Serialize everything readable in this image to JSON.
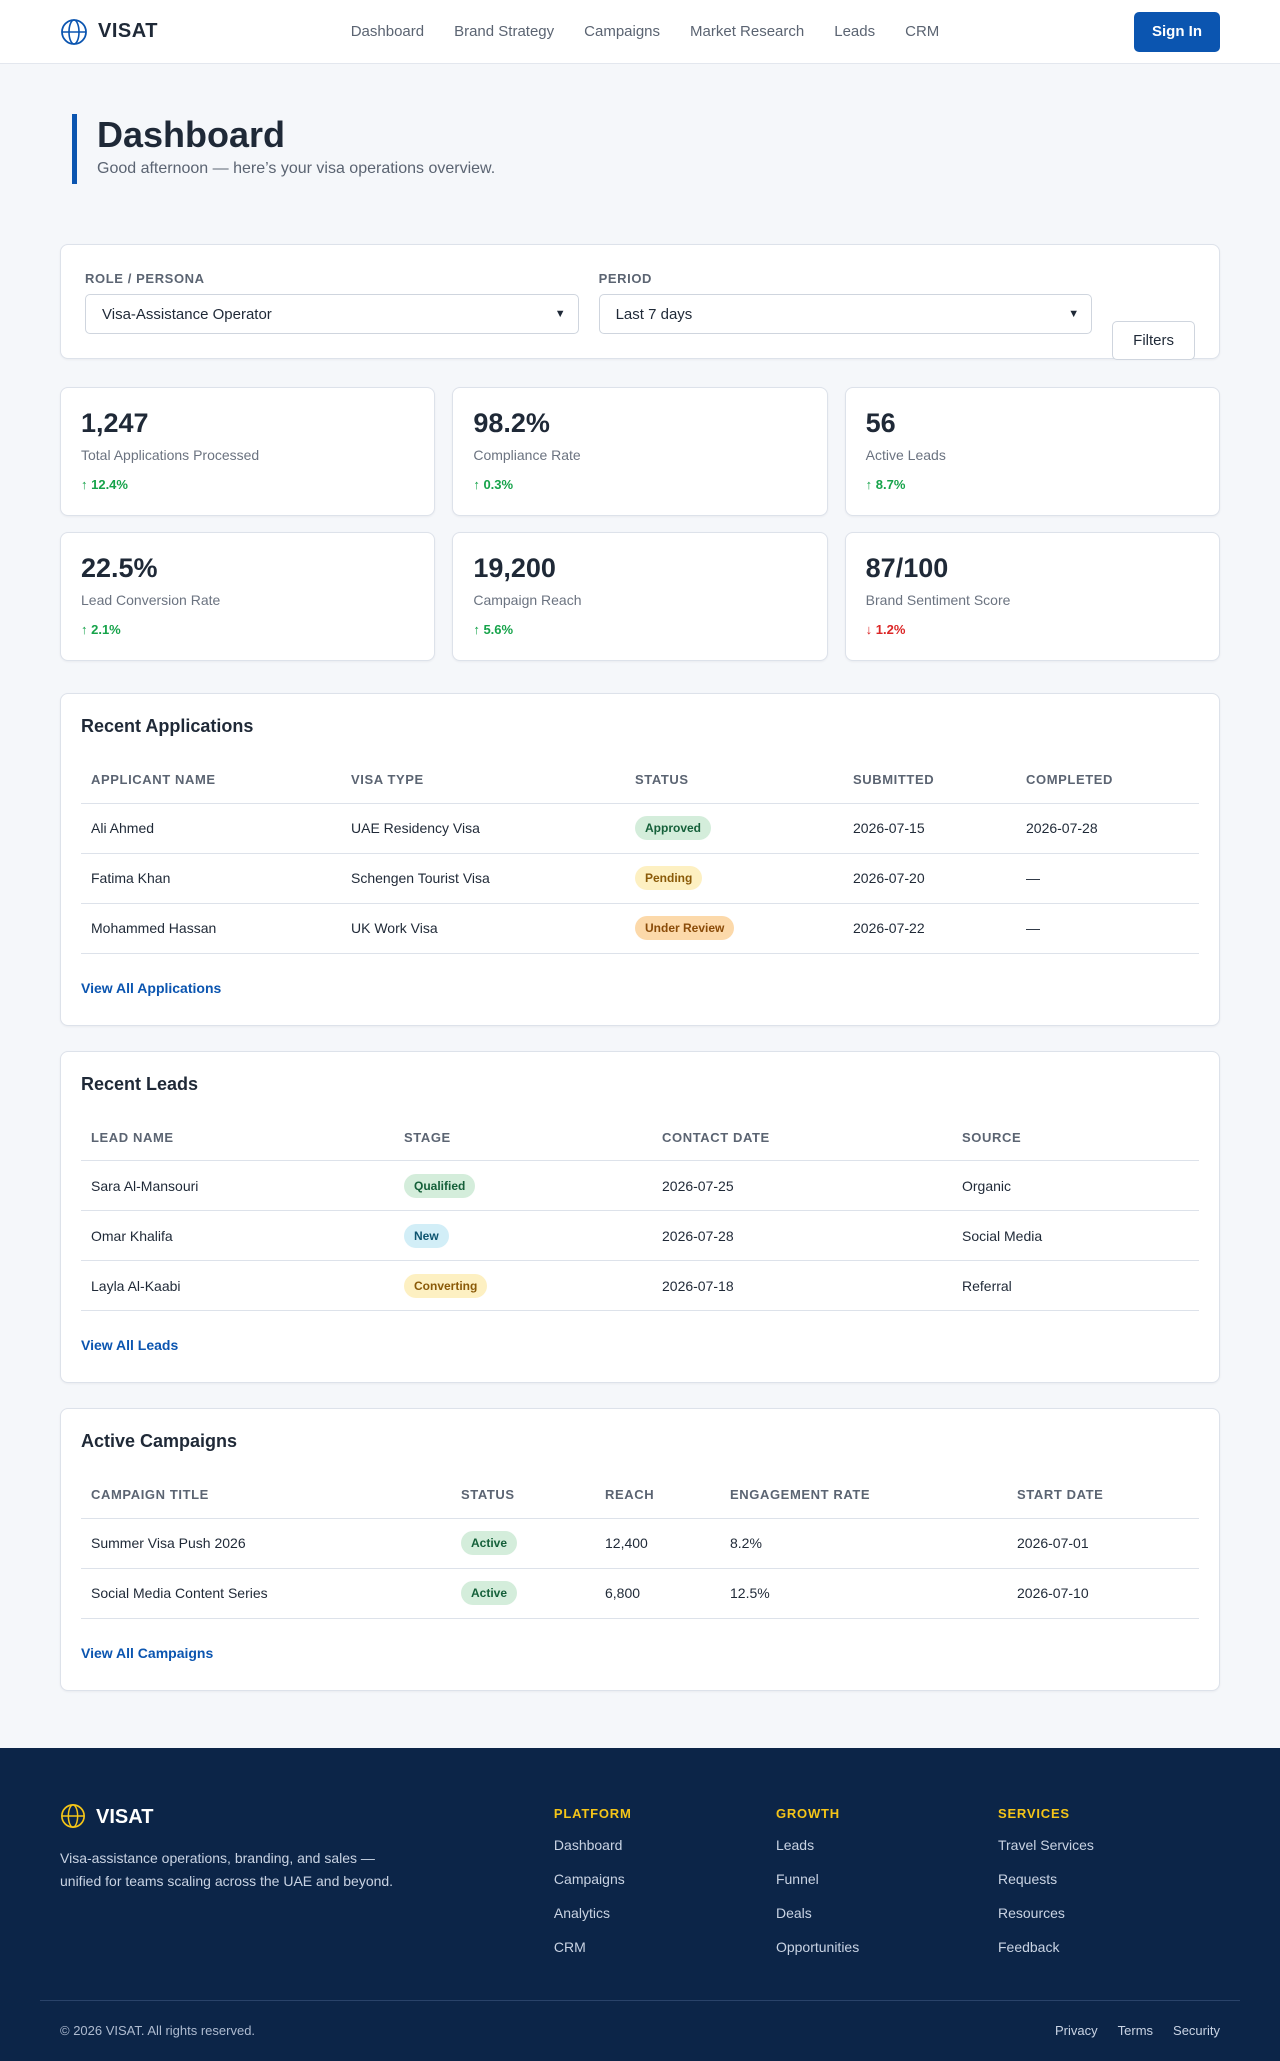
{
  "header": {
    "brand": "VISAT",
    "nav": [
      "Dashboard",
      "Brand Strategy",
      "Campaigns",
      "Market Research",
      "Leads",
      "CRM"
    ],
    "signin_label": "Sign In"
  },
  "page": {
    "title": "Dashboard",
    "subtitle": "Good afternoon — here’s your visa operations overview."
  },
  "filters": {
    "role_label": "ROLE / PERSONA",
    "role_value": "Visa-Assistance Operator",
    "period_label": "PERIOD",
    "period_value": "Last 7 days",
    "filters_button": "Filters"
  },
  "stats": [
    {
      "value": "1,247",
      "label": "Total Applications Processed",
      "delta": "↑ 12.4%",
      "trend": "up"
    },
    {
      "value": "98.2%",
      "label": "Compliance Rate",
      "delta": "↑ 0.3%",
      "trend": "up"
    },
    {
      "value": "56",
      "label": "Active Leads",
      "delta": "↑ 8.7%",
      "trend": "up"
    },
    {
      "value": "22.5%",
      "label": "Lead Conversion Rate",
      "delta": "↑ 2.1%",
      "trend": "up"
    },
    {
      "value": "19,200",
      "label": "Campaign Reach",
      "delta": "↑ 5.6%",
      "trend": "up"
    },
    {
      "value": "87/100",
      "label": "Brand Sentiment Score",
      "delta": "↓ 1.2%",
      "trend": "down"
    }
  ],
  "applications": {
    "title": "Recent Applications",
    "columns": [
      "APPLICANT NAME",
      "VISA TYPE",
      "STATUS",
      "SUBMITTED",
      "COMPLETED"
    ],
    "rows": [
      {
        "name": "Ali Ahmed",
        "type": "UAE Residency Visa",
        "status": "Approved",
        "submitted": "2026-07-15",
        "completed": "2026-07-28"
      },
      {
        "name": "Fatima Khan",
        "type": "Schengen Tourist Visa",
        "status": "Pending",
        "submitted": "2026-07-20",
        "completed": "—"
      },
      {
        "name": "Mohammed Hassan",
        "type": "UK Work Visa",
        "status": "Under Review",
        "submitted": "2026-07-22",
        "completed": "—"
      }
    ],
    "link": "View All Applications"
  },
  "leads": {
    "title": "Recent Leads",
    "columns": [
      "LEAD NAME",
      "STAGE",
      "CONTACT DATE",
      "SOURCE"
    ],
    "rows": [
      {
        "name": "Sara Al-Mansouri",
        "stage": "Qualified",
        "date": "2026-07-25",
        "source": "Organic"
      },
      {
        "name": "Omar Khalifa",
        "stage": "New",
        "date": "2026-07-28",
        "source": "Social Media"
      },
      {
        "name": "Layla Al-Kaabi",
        "stage": "Converting",
        "date": "2026-07-18",
        "source": "Referral"
      }
    ],
    "link": "View All Leads"
  },
  "campaigns": {
    "title": "Active Campaigns",
    "columns": [
      "CAMPAIGN TITLE",
      "STATUS",
      "REACH",
      "ENGAGEMENT RATE",
      "START DATE"
    ],
    "rows": [
      {
        "title": "Summer Visa Push 2026",
        "status": "Active",
        "reach": "12,400",
        "engagement": "8.2%",
        "start": "2026-07-01"
      },
      {
        "title": "Social Media Content Series",
        "status": "Active",
        "reach": "6,800",
        "engagement": "12.5%",
        "start": "2026-07-10"
      }
    ],
    "link": "View All Campaigns"
  },
  "footer": {
    "brand": "VISAT",
    "description": "Visa-assistance operations, branding, and sales — unified for teams scaling across the UAE and beyond.",
    "columns": [
      {
        "title": "PLATFORM",
        "items": [
          "Dashboard",
          "Campaigns",
          "Analytics",
          "CRM"
        ]
      },
      {
        "title": "GROWTH",
        "items": [
          "Leads",
          "Funnel",
          "Deals",
          "Opportunities"
        ]
      },
      {
        "title": "SERVICES",
        "items": [
          "Travel Services",
          "Requests",
          "Resources",
          "Feedback"
        ]
      }
    ],
    "copyright": "© 2026 VISAT. All rights reserved.",
    "legal": [
      "Privacy",
      "Terms",
      "Security"
    ]
  },
  "colors": {
    "accent": "#0b55b0",
    "footer_bg": "#0c2548",
    "footer_heading": "#f5c518",
    "positive": "#16a34a",
    "negative": "#dc2626"
  },
  "icons": {
    "logo": "globe-icon",
    "select_caret": "chevron-down-icon"
  }
}
